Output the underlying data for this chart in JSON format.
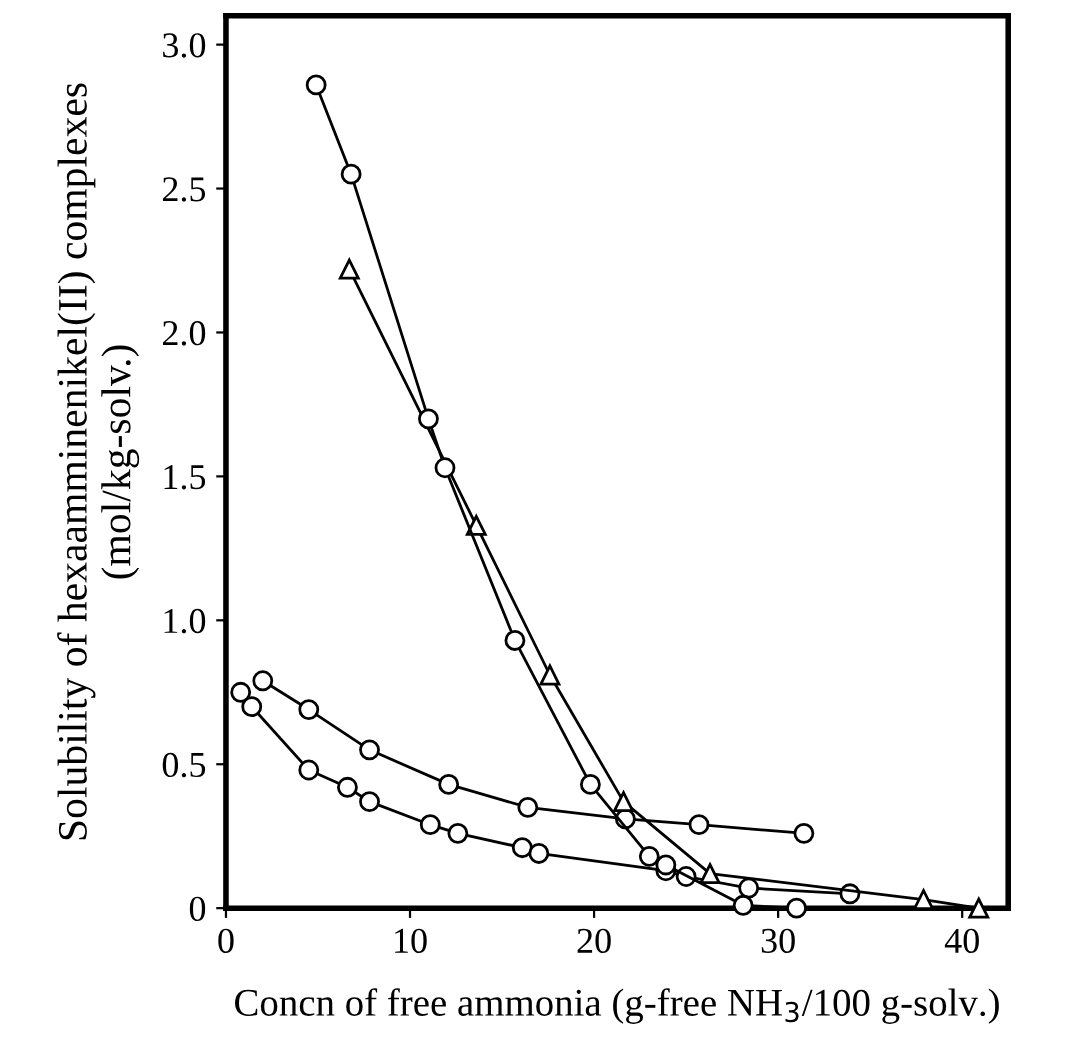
{
  "chart_data": {
    "type": "line",
    "xlabel": "Concn of free ammonia (g-free NH$_{3}$/100 g-solv.)",
    "ylabel": "Solubility of hexaamminenikel(II) complexes\n(mol/kg-solv.)",
    "xlim": [
      0,
      42.5
    ],
    "ylim": [
      0,
      3.1
    ],
    "xticks": [
      0,
      10,
      20,
      30,
      40
    ],
    "yticks": [
      0,
      {
        "value": 0.5,
        "label": "0.5"
      },
      {
        "value": 1.0,
        "label": "1.0"
      },
      {
        "value": 1.5,
        "label": "1.5"
      },
      {
        "value": 2.0,
        "label": "2.0"
      },
      {
        "value": 2.5,
        "label": "2.5"
      },
      {
        "value": 3.0,
        "label": "3.0"
      }
    ],
    "grid": false,
    "legend": false,
    "series": [
      {
        "color": "#000000",
        "marker": "circle",
        "x": [
          4.9,
          6.8,
          11.0,
          11.9,
          15.7,
          19.8,
          23.0,
          23.9,
          28.1,
          31.0
        ],
        "values": [
          2.86,
          2.55,
          1.7,
          1.53,
          0.93,
          0.43,
          0.18,
          0.15,
          0.01,
          0.0
        ]
      },
      {
        "color": "#000000",
        "marker": "triangle",
        "x": [
          6.7,
          13.6,
          17.6,
          21.6,
          26.3,
          37.9,
          40.9
        ],
        "values": [
          2.22,
          1.33,
          0.81,
          0.37,
          0.12,
          0.03,
          0.0
        ]
      },
      {
        "color": "#000000",
        "marker": "circle",
        "x": [
          2.0,
          4.5,
          7.8,
          12.1,
          16.4,
          21.7,
          25.7,
          31.4
        ],
        "values": [
          0.79,
          0.69,
          0.55,
          0.43,
          0.35,
          0.31,
          0.29,
          0.26
        ]
      },
      {
        "color": "#000000",
        "marker": "circle",
        "x": [
          0.8,
          1.4,
          4.5,
          6.6,
          7.8,
          11.1,
          12.6,
          16.1,
          17.0,
          23.9,
          25.0,
          28.4,
          33.9
        ],
        "values": [
          0.75,
          0.7,
          0.48,
          0.42,
          0.37,
          0.29,
          0.26,
          0.21,
          0.19,
          0.13,
          0.11,
          0.07,
          0.05
        ]
      }
    ]
  }
}
